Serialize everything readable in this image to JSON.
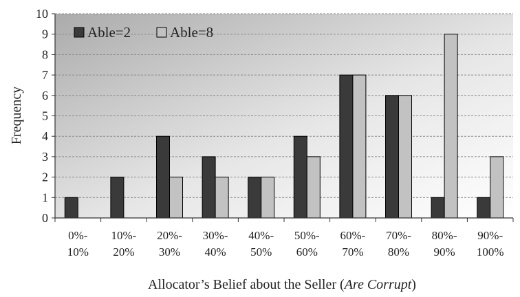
{
  "chart_data": {
    "type": "bar",
    "categories": [
      [
        "0%-",
        "10%"
      ],
      [
        "10%-",
        "20%"
      ],
      [
        "20%-",
        "30%"
      ],
      [
        "30%-",
        "40%"
      ],
      [
        "40%-",
        "50%"
      ],
      [
        "50%-",
        "60%"
      ],
      [
        "60%-",
        "70%"
      ],
      [
        "70%-",
        "80%"
      ],
      [
        "80%-",
        "90%"
      ],
      [
        "90%-",
        "100%"
      ]
    ],
    "series": [
      {
        "name": "Able=2",
        "color": "#3a3a3a",
        "values": [
          1,
          2,
          4,
          3,
          2,
          4,
          7,
          6,
          1,
          1
        ]
      },
      {
        "name": "Able=8",
        "color": "#c2c2c2",
        "values": [
          0,
          0,
          2,
          2,
          2,
          3,
          7,
          6,
          9,
          3
        ]
      }
    ],
    "ylabel": "Frequency",
    "xlabel_main": "Allocator’s Belief  about the Seller (",
    "xlabel_italic": "Are Corrupt",
    "xlabel_end": ")",
    "ylim": [
      0,
      10
    ],
    "yticks": [
      0,
      1,
      2,
      3,
      4,
      5,
      6,
      7,
      8,
      9,
      10
    ],
    "grid": true,
    "legend_position": "top-left",
    "plot_background": "gradient-gray"
  }
}
